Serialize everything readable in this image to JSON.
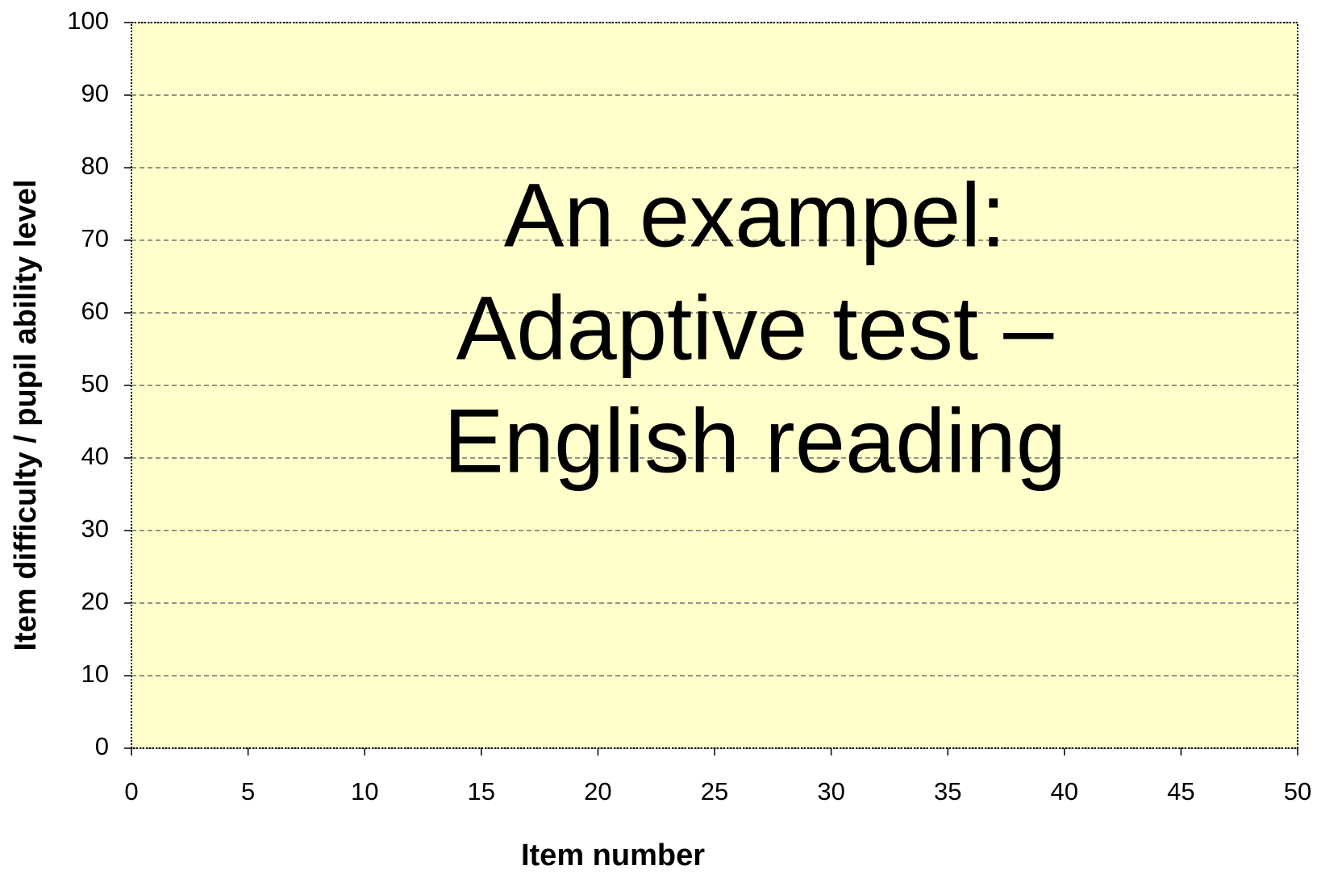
{
  "chart_data": {
    "type": "scatter",
    "xlabel": "Item number",
    "ylabel": "Item difficulty / pupil ability level",
    "annotation": [
      "An exampel:",
      "Adaptive test –",
      "English reading"
    ],
    "xlim": [
      0,
      50
    ],
    "xticks": [
      0,
      5,
      10,
      15,
      20,
      25,
      30,
      35,
      40,
      45,
      50
    ],
    "ylim": [
      0,
      100
    ],
    "yticks": [
      0,
      10,
      20,
      30,
      40,
      50,
      60,
      70,
      80,
      90,
      100
    ],
    "grid": true,
    "plot_background": "#ffffcc"
  }
}
